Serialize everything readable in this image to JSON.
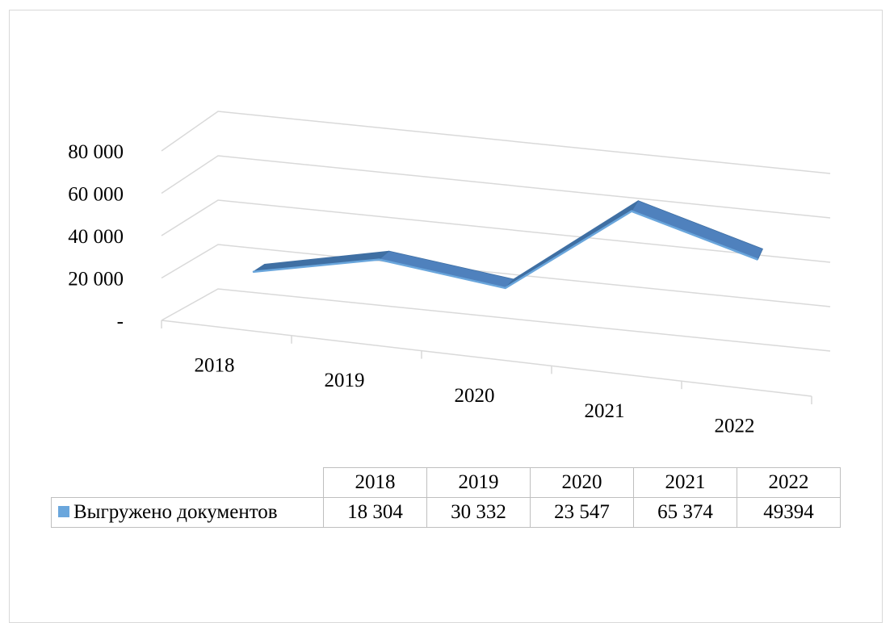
{
  "chart_data": {
    "type": "line",
    "three_d": true,
    "categories": [
      "2018",
      "2019",
      "2020",
      "2021",
      "2022"
    ],
    "y_tick_labels": [
      "-",
      "20 000",
      "40 000",
      "60 000",
      "80 000"
    ],
    "y_ticks": [
      0,
      20000,
      40000,
      60000,
      80000
    ],
    "ylim": [
      0,
      80000
    ],
    "grid": true,
    "series": [
      {
        "name": "Выгружено документов",
        "values": [
          18304,
          30332,
          23547,
          65374,
          49394
        ],
        "value_labels": [
          "18 304",
          "30 332",
          "23 547",
          "65 374",
          "49394"
        ],
        "color": "#4f81bd",
        "top_color": "#3f6fa3",
        "edge_color": "#6aa6dc"
      }
    ],
    "legend": "data-table"
  }
}
